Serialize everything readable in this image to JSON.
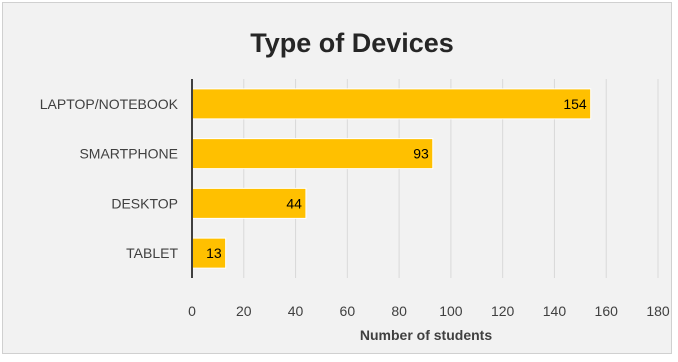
{
  "chart_data": {
    "type": "bar",
    "orientation": "horizontal",
    "title": "Type of Devices",
    "xlabel": "Number of students",
    "ylabel": "",
    "categories": [
      "LAPTOP/NOTEBOOK",
      "SMARTPHONE",
      "DESKTOP",
      "TABLET"
    ],
    "values": [
      154,
      93,
      44,
      13
    ],
    "xlim": [
      0,
      180
    ],
    "xticks": [
      0,
      20,
      40,
      60,
      80,
      100,
      120,
      140,
      160,
      180
    ],
    "xtick_labels": [
      "0",
      "20",
      "40",
      "60",
      "80",
      "100",
      "120",
      "140",
      "160",
      "180"
    ],
    "grid": "vertical",
    "legend": "none",
    "data_labels": [
      "154",
      "93",
      "44",
      "13"
    ],
    "colors": {
      "bar_fill": "#ffc000",
      "bar_edge": "#ffffff",
      "background": "#f2f2f2",
      "gridline": "#d9d9d9",
      "axis_line": "#404040"
    }
  }
}
